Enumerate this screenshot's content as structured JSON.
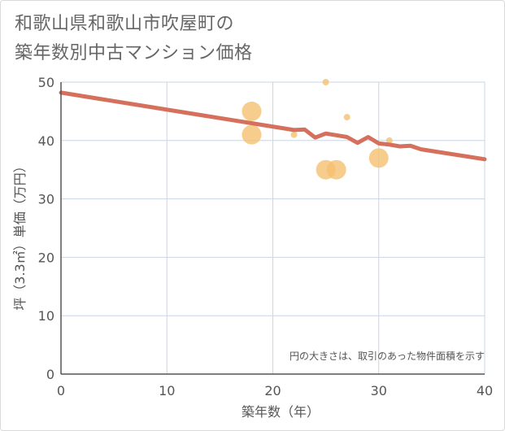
{
  "title": {
    "line1": "和歌山県和歌山市吹屋町の",
    "line2": "築年数別中古マンション価格"
  },
  "chart_data": {
    "type": "scatter",
    "xlabel": "築年数（年）",
    "ylabel": "坪（3.3㎡）単価（万円）",
    "xlim": [
      0,
      40
    ],
    "ylim": [
      0,
      50
    ],
    "xticks": [
      0,
      10,
      20,
      30,
      40
    ],
    "yticks": [
      0,
      10,
      20,
      30,
      40,
      50
    ],
    "grid": true,
    "note": "円の大きさは、取引のあった物件面積を示す",
    "points": [
      {
        "x": 18,
        "y": 45,
        "size": "large"
      },
      {
        "x": 18,
        "y": 41,
        "size": "large"
      },
      {
        "x": 22,
        "y": 41,
        "size": "small"
      },
      {
        "x": 25,
        "y": 50,
        "size": "small"
      },
      {
        "x": 25,
        "y": 35,
        "size": "large"
      },
      {
        "x": 26,
        "y": 35,
        "size": "large"
      },
      {
        "x": 27,
        "y": 44,
        "size": "small"
      },
      {
        "x": 30,
        "y": 37,
        "size": "large"
      },
      {
        "x": 31,
        "y": 40,
        "size": "small"
      }
    ],
    "trend": [
      {
        "x": 0,
        "y": 48.2
      },
      {
        "x": 22,
        "y": 41.8
      },
      {
        "x": 23,
        "y": 41.9
      },
      {
        "x": 24,
        "y": 40.5
      },
      {
        "x": 25,
        "y": 41.2
      },
      {
        "x": 26,
        "y": 40.9
      },
      {
        "x": 27,
        "y": 40.6
      },
      {
        "x": 28,
        "y": 39.6
      },
      {
        "x": 29,
        "y": 40.6
      },
      {
        "x": 30,
        "y": 39.5
      },
      {
        "x": 31,
        "y": 39.3
      },
      {
        "x": 32,
        "y": 39.0
      },
      {
        "x": 33,
        "y": 39.1
      },
      {
        "x": 34,
        "y": 38.5
      },
      {
        "x": 40,
        "y": 36.8
      }
    ],
    "colors": {
      "trend": "#d4705b",
      "bubble": "#f5c071",
      "grid": "#c8d6e5",
      "axis": "#555555"
    }
  }
}
